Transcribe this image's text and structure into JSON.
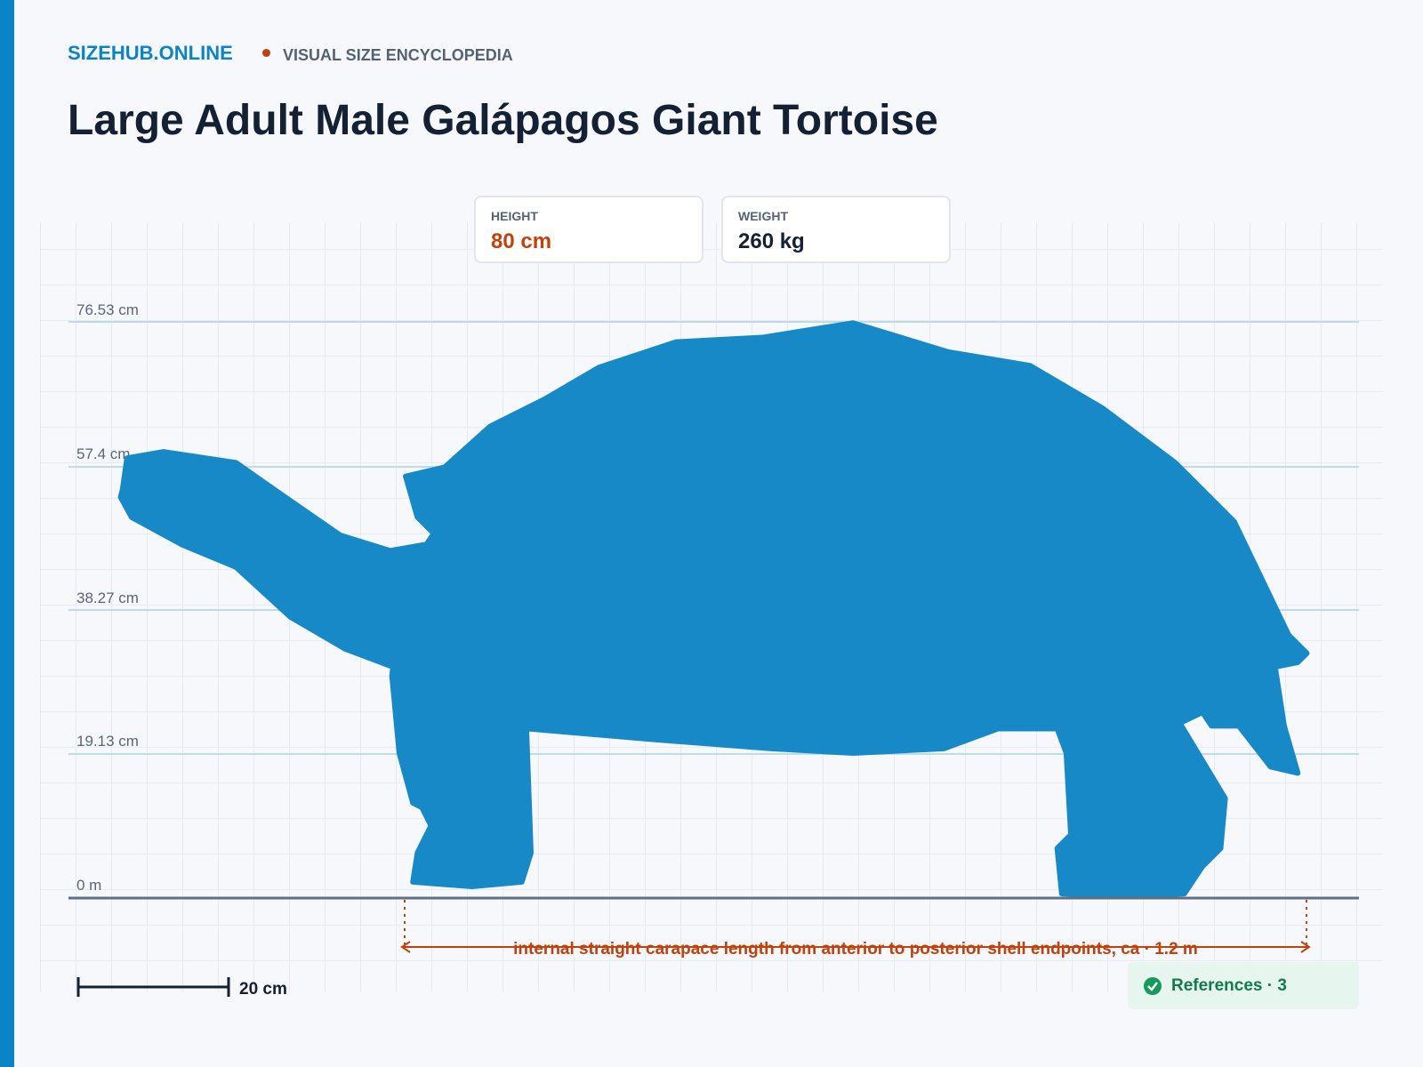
{
  "brand": "SIZEHUB.ONLINE",
  "tagline": "VISUAL SIZE ENCYCLOPEDIA",
  "title": "Large Adult Male Galápagos Giant Tortoise",
  "stats": [
    {
      "label": "HEIGHT",
      "value": "80 cm"
    },
    {
      "label": "WEIGHT",
      "value": "260 kg"
    }
  ],
  "reference_lines": [
    "76.53 cm",
    "57.4 cm",
    "38.27 cm",
    "19.13 cm",
    "0 m"
  ],
  "measurement": "internal straight carapace length from anterior to posterior shell endpoints, ca · 1.2 m",
  "scale_bar": "20 cm",
  "references": "References · 3"
}
